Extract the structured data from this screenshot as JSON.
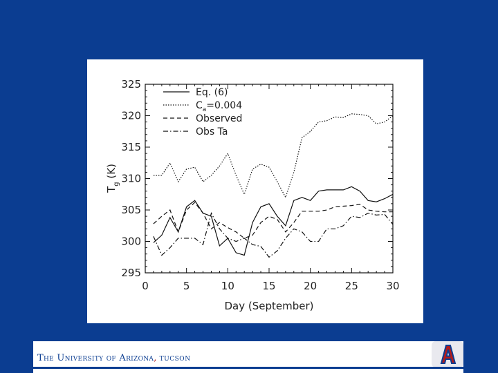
{
  "footer": {
    "university_name": "The University of Arizona",
    "comma": ",",
    "city": "TUCSON",
    "logo_icon": "block-a-logo-icon"
  },
  "colors": {
    "slide_background": "#0b3d91",
    "footer_accent_red": "#b31b1b"
  },
  "chart_data": {
    "type": "line",
    "title": "",
    "xlabel": "Day (September)",
    "ylabel": "T_g (K)",
    "ylabel_main": "T",
    "ylabel_sub": "g",
    "ylabel_unit": " (K)",
    "xlim": [
      0,
      30
    ],
    "ylim": [
      295,
      325
    ],
    "xticks": [
      0,
      5,
      10,
      15,
      20,
      25,
      30
    ],
    "yticks": [
      295,
      300,
      305,
      310,
      315,
      320,
      325
    ],
    "grid": false,
    "legend_position": "top-left",
    "series": [
      {
        "name": "Eq. (6)",
        "style": "solid",
        "x": [
          1,
          2,
          3,
          4,
          5,
          6,
          7,
          8,
          9,
          10,
          11,
          12,
          13,
          14,
          15,
          16,
          17,
          18,
          19,
          20,
          21,
          22,
          23,
          24,
          25,
          26,
          27,
          28,
          29,
          30
        ],
        "y": [
          299.8,
          301,
          303.8,
          301.5,
          305.5,
          306.5,
          304.5,
          304,
          299.3,
          300.5,
          298.2,
          297.8,
          303,
          305.5,
          306,
          304,
          302.5,
          306.5,
          307,
          306.5,
          308,
          308.2,
          308.2,
          308.2,
          308.7,
          308,
          306.5,
          306.3,
          306.8,
          307.5
        ]
      },
      {
        "name": "C_a=0.004",
        "name_main": "C",
        "name_sub": "a",
        "name_rest": "=0.004",
        "style": "dotted",
        "x": [
          1,
          2,
          3,
          4,
          5,
          6,
          7,
          8,
          9,
          10,
          11,
          12,
          13,
          14,
          15,
          16,
          17,
          18,
          19,
          20,
          21,
          22,
          23,
          24,
          25,
          26,
          27,
          28,
          29,
          30
        ],
        "y": [
          310.5,
          310.5,
          312.5,
          309.5,
          311.5,
          311.8,
          309.5,
          310.5,
          312,
          314,
          310.5,
          307.5,
          311.5,
          312.3,
          311.8,
          309.5,
          307,
          311,
          316.5,
          317.5,
          319,
          319.2,
          319.8,
          319.7,
          320.3,
          320.2,
          320,
          318.7,
          319,
          320
        ]
      },
      {
        "name": "Observed",
        "style": "dashed",
        "x": [
          1,
          2,
          3,
          4,
          5,
          6,
          7,
          8,
          9,
          10,
          11,
          12,
          13,
          14,
          15,
          16,
          17,
          18,
          19,
          20,
          21,
          22,
          23,
          24,
          25,
          26,
          27,
          28,
          29,
          30
        ],
        "y": [
          302.8,
          304,
          305,
          301.5,
          305,
          306.2,
          304.5,
          302,
          303,
          302.2,
          301.5,
          300.5,
          301,
          303,
          304,
          303.5,
          301.5,
          303,
          304.8,
          304.8,
          304.8,
          305,
          305.5,
          305.6,
          305.7,
          305.9,
          305,
          304.8,
          304.7,
          304.7
        ]
      },
      {
        "name": "Obs Ta",
        "style": "dashdot",
        "x": [
          1,
          2,
          3,
          4,
          5,
          6,
          7,
          8,
          9,
          10,
          11,
          12,
          13,
          14,
          15,
          16,
          17,
          18,
          19,
          20,
          21,
          22,
          23,
          24,
          25,
          26,
          27,
          28,
          29,
          30
        ],
        "y": [
          300.8,
          297.8,
          299,
          300.5,
          300.5,
          300.5,
          299.5,
          304.5,
          302,
          300.5,
          300,
          300.5,
          299.5,
          299.2,
          297.5,
          298.5,
          300.5,
          302,
          301.5,
          300,
          300,
          302,
          302,
          302.5,
          304,
          303.8,
          304.5,
          304.2,
          304.3,
          302.7
        ]
      }
    ]
  }
}
